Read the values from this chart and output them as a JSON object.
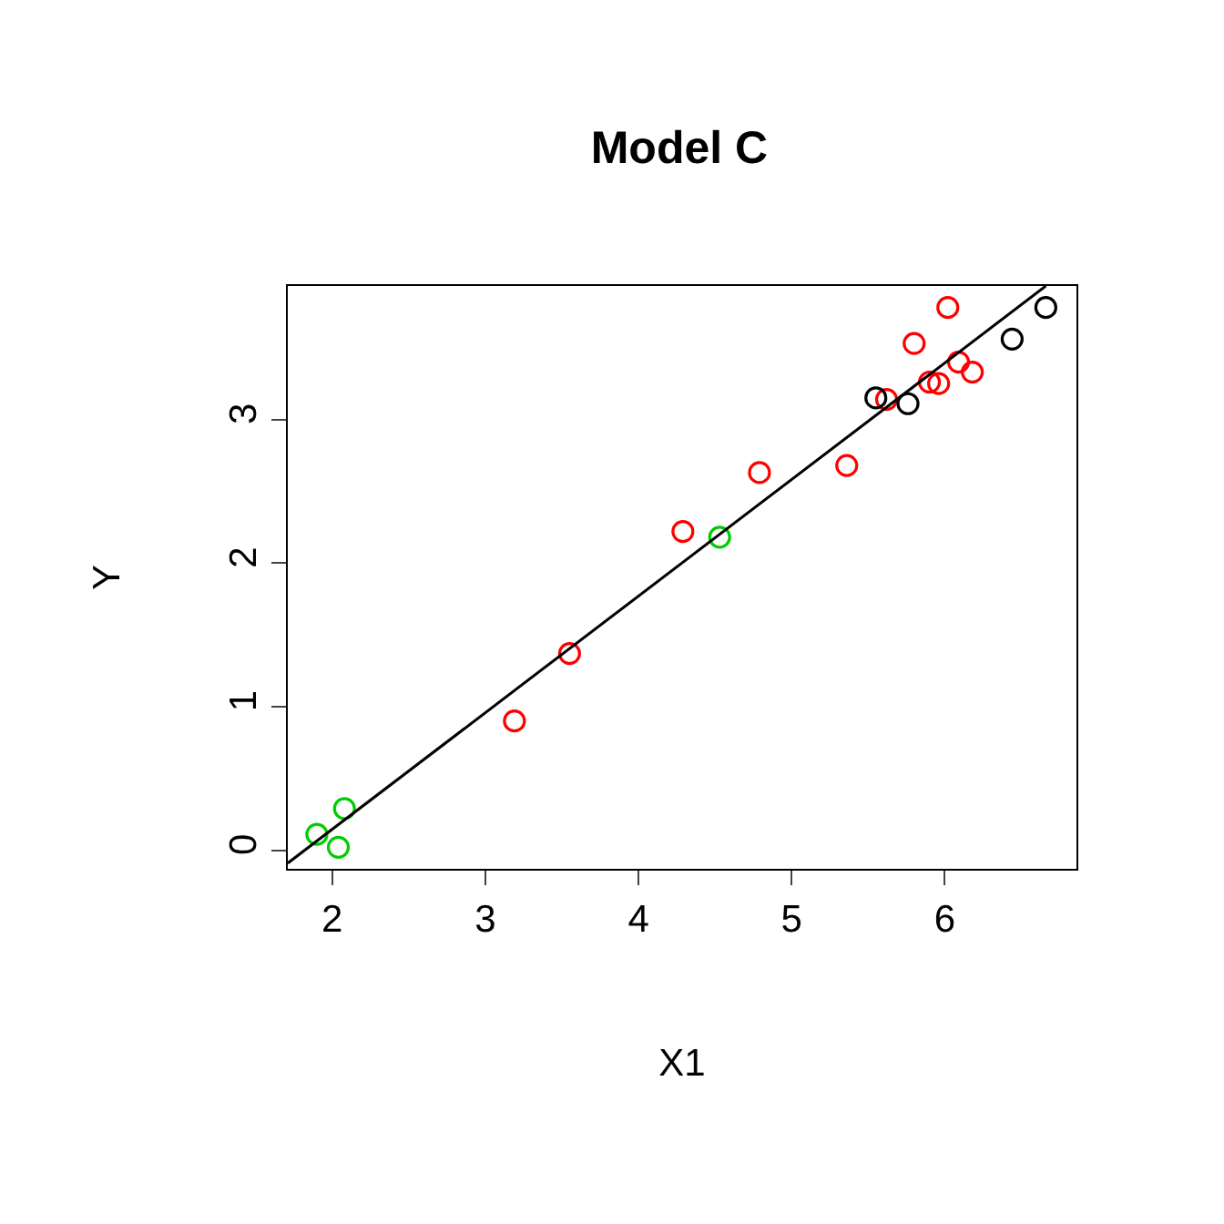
{
  "chart_data": {
    "type": "scatter",
    "title": "Model C",
    "xlabel": "X1",
    "ylabel": "Y",
    "xlim": [
      1.71,
      6.86
    ],
    "ylim": [
      -0.13,
      3.93
    ],
    "xticks": [
      2,
      3,
      4,
      5,
      6
    ],
    "yticks": [
      0,
      1,
      2,
      3
    ],
    "series": [
      {
        "color": "#00cd00",
        "marker": "circle",
        "x": [
          1.9,
          2.08,
          2.04,
          4.53
        ],
        "values": [
          0.11,
          0.29,
          0.02,
          2.18
        ]
      },
      {
        "color": "#ff0000",
        "marker": "circle",
        "x": [
          3.19,
          3.55,
          4.29,
          4.79,
          5.36,
          5.62,
          5.8,
          6.02,
          5.9,
          5.96,
          6.09,
          6.18
        ],
        "values": [
          0.9,
          1.37,
          2.22,
          2.63,
          2.68,
          3.14,
          3.53,
          3.78,
          3.26,
          3.25,
          3.4,
          3.33
        ]
      },
      {
        "color": "#000000",
        "marker": "circle",
        "x": [
          5.55,
          5.76,
          6.44,
          6.66
        ],
        "values": [
          3.15,
          3.11,
          3.56,
          3.78
        ]
      },
      {
        "type": "line",
        "color": "#000000",
        "marker": "none",
        "x": [
          1.71,
          6.66
        ],
        "values": [
          -0.09,
          3.93
        ],
        "line_style": "solid"
      }
    ]
  }
}
